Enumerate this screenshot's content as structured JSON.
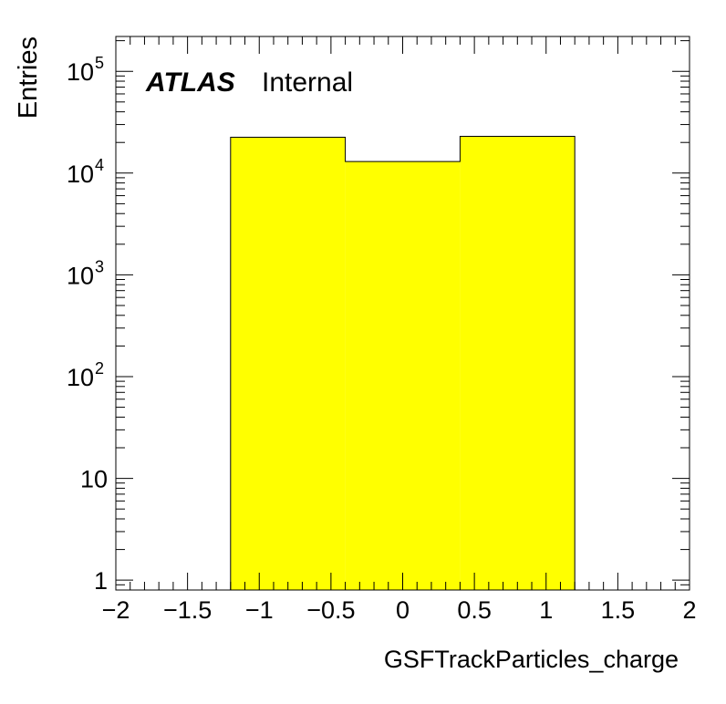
{
  "chart_data": {
    "type": "bar",
    "histogram": true,
    "title": "",
    "xlabel": "GSFTrackParticles_charge",
    "ylabel": "Entries",
    "xlim": [
      -2,
      2
    ],
    "ylim": [
      0.8,
      220000
    ],
    "yscale": "log",
    "bins": [
      {
        "x0": -1.2,
        "x1": -0.4,
        "value": 22500
      },
      {
        "x0": -0.4,
        "x1": 0.4,
        "value": 13000
      },
      {
        "x0": 0.4,
        "x1": 1.2,
        "value": 23000
      }
    ],
    "fill_color": "#ffff00",
    "edge_color": "#000000",
    "x_ticks": [
      {
        "value": -2,
        "label": "−2"
      },
      {
        "value": -1.5,
        "label": "−1.5"
      },
      {
        "value": -1,
        "label": "−1"
      },
      {
        "value": -0.5,
        "label": "−0.5"
      },
      {
        "value": 0,
        "label": "0"
      },
      {
        "value": 0.5,
        "label": "0.5"
      },
      {
        "value": 1,
        "label": "1"
      },
      {
        "value": 1.5,
        "label": "1.5"
      },
      {
        "value": 2,
        "label": "2"
      }
    ],
    "y_ticks": [
      {
        "value": 1,
        "base": "1",
        "exp": ""
      },
      {
        "value": 10,
        "base": "10",
        "exp": ""
      },
      {
        "value": 100,
        "base": "10",
        "exp": "2"
      },
      {
        "value": 1000,
        "base": "10",
        "exp": "3"
      },
      {
        "value": 10000,
        "base": "10",
        "exp": "4"
      },
      {
        "value": 100000,
        "base": "10",
        "exp": "5"
      }
    ],
    "grid": false,
    "legend": "none"
  },
  "label": {
    "experiment": "ATLAS",
    "status": "Internal"
  }
}
